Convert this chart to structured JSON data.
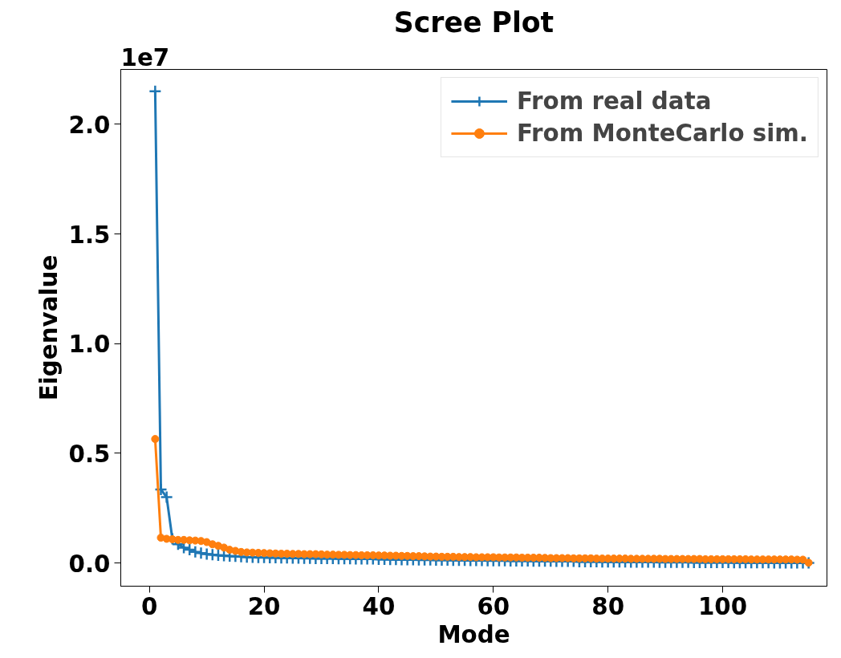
{
  "chart_data": {
    "type": "line",
    "title": "Scree Plot",
    "xlabel": "Mode",
    "ylabel": "Eigenvalue",
    "annotations": [
      "1e7"
    ],
    "x": [
      1,
      2,
      3,
      4,
      5,
      6,
      7,
      8,
      9,
      10,
      11,
      12,
      13,
      14,
      15,
      16,
      17,
      18,
      19,
      20,
      21,
      22,
      23,
      24,
      25,
      26,
      27,
      28,
      29,
      30,
      31,
      32,
      33,
      34,
      35,
      36,
      37,
      38,
      39,
      40,
      41,
      42,
      43,
      44,
      45,
      46,
      47,
      48,
      49,
      50,
      51,
      52,
      53,
      54,
      55,
      56,
      57,
      58,
      59,
      60,
      61,
      62,
      63,
      64,
      65,
      66,
      67,
      68,
      69,
      70,
      71,
      72,
      73,
      74,
      75,
      76,
      77,
      78,
      79,
      80,
      81,
      82,
      83,
      84,
      85,
      86,
      87,
      88,
      89,
      90,
      91,
      92,
      93,
      94,
      95,
      96,
      97,
      98,
      99,
      100,
      101,
      102,
      103,
      104,
      105,
      106,
      107,
      108,
      109,
      110,
      111,
      112,
      113,
      114,
      115
    ],
    "series": [
      {
        "name": "From real data",
        "color": "#1f77b4",
        "marker": "cross",
        "values": [
          2.15,
          0.335,
          0.3,
          0.11,
          0.085,
          0.07,
          0.06,
          0.05,
          0.045,
          0.04,
          0.038,
          0.035,
          0.033,
          0.031,
          0.03,
          0.028,
          0.027,
          0.026,
          0.025,
          0.025,
          0.024,
          0.024,
          0.023,
          0.023,
          0.022,
          0.022,
          0.021,
          0.021,
          0.02,
          0.02,
          0.02,
          0.02,
          0.019,
          0.019,
          0.019,
          0.018,
          0.018,
          0.018,
          0.018,
          0.017,
          0.017,
          0.016,
          0.016,
          0.015,
          0.015,
          0.015,
          0.014,
          0.014,
          0.014,
          0.013,
          0.013,
          0.013,
          0.012,
          0.012,
          0.012,
          0.011,
          0.011,
          0.011,
          0.01,
          0.01,
          0.01,
          0.01,
          0.009,
          0.009,
          0.009,
          0.009,
          0.008,
          0.008,
          0.008,
          0.008,
          0.007,
          0.007,
          0.007,
          0.007,
          0.006,
          0.006,
          0.006,
          0.006,
          0.005,
          0.005,
          0.005,
          0.005,
          0.005,
          0.004,
          0.004,
          0.004,
          0.004,
          0.004,
          0.003,
          0.003,
          0.003,
          0.003,
          0.003,
          0.003,
          0.002,
          0.002,
          0.002,
          0.002,
          0.002,
          0.002,
          0.002,
          0.001,
          0.001,
          0.001,
          0.001,
          0.001,
          0.001,
          0.001,
          0,
          0,
          0,
          0,
          0,
          0,
          0
        ]
      },
      {
        "name": "From MonteCarlo sim.",
        "color": "#ff7f0e",
        "marker": "circle",
        "values": [
          0.565,
          0.115,
          0.11,
          0.108,
          0.105,
          0.105,
          0.103,
          0.102,
          0.1,
          0.095,
          0.085,
          0.078,
          0.07,
          0.06,
          0.055,
          0.05,
          0.048,
          0.047,
          0.046,
          0.045,
          0.044,
          0.043,
          0.042,
          0.042,
          0.041,
          0.041,
          0.04,
          0.04,
          0.04,
          0.039,
          0.038,
          0.038,
          0.037,
          0.037,
          0.036,
          0.036,
          0.035,
          0.035,
          0.035,
          0.034,
          0.034,
          0.033,
          0.033,
          0.032,
          0.032,
          0.031,
          0.031,
          0.03,
          0.029,
          0.029,
          0.028,
          0.028,
          0.028,
          0.027,
          0.027,
          0.027,
          0.026,
          0.026,
          0.026,
          0.026,
          0.025,
          0.025,
          0.025,
          0.025,
          0.024,
          0.024,
          0.024,
          0.024,
          0.023,
          0.022,
          0.022,
          0.022,
          0.022,
          0.021,
          0.021,
          0.021,
          0.021,
          0.02,
          0.02,
          0.02,
          0.02,
          0.02,
          0.02,
          0.019,
          0.019,
          0.019,
          0.019,
          0.019,
          0.019,
          0.018,
          0.018,
          0.018,
          0.018,
          0.018,
          0.018,
          0.018,
          0.017,
          0.017,
          0.017,
          0.017,
          0.017,
          0.017,
          0.017,
          0.017,
          0.016,
          0.016,
          0.016,
          0.016,
          0.016,
          0.016,
          0.016,
          0.016,
          0.015,
          0.015,
          0.001
        ]
      }
    ],
    "xlim": [
      -5,
      118.2
    ],
    "xticks": [
      0,
      20,
      40,
      60,
      80,
      100
    ],
    "ylim": [
      -0.106,
      2.25
    ],
    "yticks": [
      {
        "value": 0,
        "label": "0.0"
      },
      {
        "value": 0.5,
        "label": "0.5"
      },
      {
        "value": 1,
        "label": "1.0"
      },
      {
        "value": 1.5,
        "label": "1.5"
      },
      {
        "value": 2,
        "label": "2.0"
      }
    ],
    "grid": false,
    "legend": "top right",
    "line_style": "solid"
  }
}
